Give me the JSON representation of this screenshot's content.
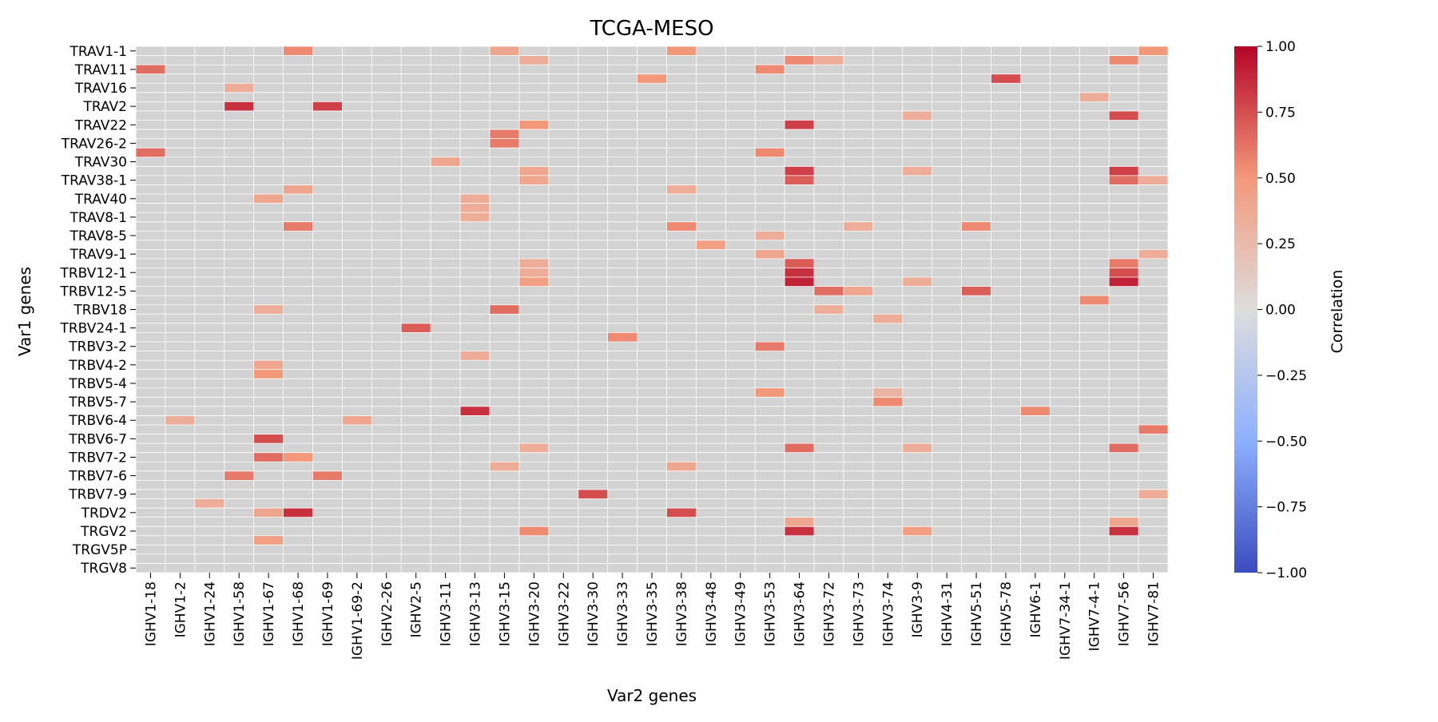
{
  "chart_data": {
    "type": "heatmap",
    "title": "TCGA-MESO",
    "xlabel": "Var2 genes",
    "ylabel": "Var1 genes",
    "colorbar": {
      "label": "Correlation",
      "range": [
        -1.0,
        1.0
      ],
      "ticks": [
        "1.00",
        "0.75",
        "0.50",
        "0.25",
        "0.00",
        "−0.25",
        "−0.50",
        "−0.75",
        "−1.00"
      ],
      "tick_values": [
        1.0,
        0.75,
        0.5,
        0.25,
        0.0,
        -0.25,
        -0.5,
        -0.75,
        -1.0
      ]
    },
    "x_labels": [
      "IGHV1-18",
      "IGHV1-2",
      "IGHV1-24",
      "IGHV1-58",
      "IGHV1-67",
      "IGHV1-68",
      "IGHV1-69",
      "IGHV1-69-2",
      "IGHV2-26",
      "IGHV2-5",
      "IGHV3-11",
      "IGHV3-13",
      "IGHV3-15",
      "IGHV3-20",
      "IGHV3-22",
      "IGHV3-30",
      "IGHV3-33",
      "IGHV3-35",
      "IGHV3-38",
      "IGHV3-48",
      "IGHV3-49",
      "IGHV3-53",
      "IGHV3-64",
      "IGHV3-72",
      "IGHV3-73",
      "IGHV3-74",
      "IGHV3-9",
      "IGHV4-31",
      "IGHV5-51",
      "IGHV5-78",
      "IGHV6-1",
      "IGHV7-34-1",
      "IGHV7-4-1",
      "IGHV7-56",
      "IGHV7-81"
    ],
    "y_tick_labels": [
      "TRAV1-1",
      "TRAV11",
      "TRAV16",
      "TRAV2",
      "TRAV22",
      "TRAV26-2",
      "TRAV30",
      "TRAV38-1",
      "TRAV40",
      "TRAV8-1",
      "TRAV8-5",
      "TRAV9-1",
      "TRBV12-1",
      "TRBV12-5",
      "TRBV18",
      "TRBV24-1",
      "TRBV3-2",
      "TRBV4-2",
      "TRBV5-4",
      "TRBV5-7",
      "TRBV6-4",
      "TRBV6-7",
      "TRBV7-2",
      "TRBV7-6",
      "TRBV7-9",
      "TRDV2",
      "TRGV2",
      "TRGV5P",
      "TRGV8"
    ],
    "n_rows": 57,
    "n_cols": 35,
    "background_value_color": "#d3d3d3",
    "grid": true,
    "cells": [
      [
        0,
        5,
        0.55
      ],
      [
        0,
        12,
        0.4
      ],
      [
        0,
        18,
        0.5
      ],
      [
        0,
        34,
        0.5
      ],
      [
        1,
        13,
        0.35
      ],
      [
        1,
        22,
        0.55
      ],
      [
        1,
        23,
        0.35
      ],
      [
        1,
        33,
        0.55
      ],
      [
        2,
        0,
        0.65
      ],
      [
        2,
        21,
        0.55
      ],
      [
        3,
        17,
        0.5
      ],
      [
        3,
        29,
        0.75
      ],
      [
        4,
        3,
        0.35
      ],
      [
        5,
        32,
        0.35
      ],
      [
        6,
        3,
        0.85
      ],
      [
        6,
        6,
        0.8
      ],
      [
        7,
        26,
        0.35
      ],
      [
        7,
        33,
        0.75
      ],
      [
        8,
        13,
        0.5
      ],
      [
        8,
        22,
        0.8
      ],
      [
        9,
        12,
        0.6
      ],
      [
        10,
        12,
        0.6
      ],
      [
        11,
        0,
        0.65
      ],
      [
        11,
        21,
        0.55
      ],
      [
        12,
        10,
        0.4
      ],
      [
        13,
        13,
        0.4
      ],
      [
        13,
        22,
        0.8
      ],
      [
        13,
        26,
        0.35
      ],
      [
        13,
        33,
        0.8
      ],
      [
        14,
        13,
        0.4
      ],
      [
        14,
        22,
        0.7
      ],
      [
        14,
        33,
        0.65
      ],
      [
        14,
        34,
        0.35
      ],
      [
        15,
        5,
        0.4
      ],
      [
        15,
        18,
        0.35
      ],
      [
        16,
        4,
        0.4
      ],
      [
        16,
        11,
        0.35
      ],
      [
        17,
        11,
        0.35
      ],
      [
        18,
        11,
        0.35
      ],
      [
        19,
        5,
        0.6
      ],
      [
        19,
        18,
        0.55
      ],
      [
        19,
        24,
        0.35
      ],
      [
        19,
        28,
        0.55
      ],
      [
        20,
        21,
        0.35
      ],
      [
        21,
        19,
        0.45
      ],
      [
        22,
        21,
        0.4
      ],
      [
        22,
        34,
        0.35
      ],
      [
        23,
        13,
        0.35
      ],
      [
        23,
        22,
        0.7
      ],
      [
        23,
        33,
        0.6
      ],
      [
        24,
        13,
        0.35
      ],
      [
        24,
        22,
        0.85
      ],
      [
        24,
        33,
        0.75
      ],
      [
        25,
        13,
        0.45
      ],
      [
        25,
        22,
        0.9
      ],
      [
        25,
        26,
        0.35
      ],
      [
        25,
        33,
        0.9
      ],
      [
        26,
        23,
        0.65
      ],
      [
        26,
        24,
        0.4
      ],
      [
        26,
        28,
        0.7
      ],
      [
        27,
        32,
        0.55
      ],
      [
        28,
        4,
        0.35
      ],
      [
        28,
        12,
        0.65
      ],
      [
        28,
        23,
        0.35
      ],
      [
        29,
        25,
        0.35
      ],
      [
        30,
        9,
        0.7
      ],
      [
        31,
        16,
        0.55
      ],
      [
        32,
        21,
        0.6
      ],
      [
        33,
        11,
        0.35
      ],
      [
        34,
        4,
        0.4
      ],
      [
        35,
        4,
        0.5
      ],
      [
        37,
        21,
        0.5
      ],
      [
        37,
        25,
        0.3
      ],
      [
        38,
        25,
        0.55
      ],
      [
        39,
        11,
        0.85
      ],
      [
        39,
        30,
        0.55
      ],
      [
        40,
        1,
        0.35
      ],
      [
        40,
        7,
        0.4
      ],
      [
        41,
        34,
        0.6
      ],
      [
        42,
        4,
        0.75
      ],
      [
        43,
        13,
        0.35
      ],
      [
        43,
        22,
        0.65
      ],
      [
        43,
        26,
        0.35
      ],
      [
        43,
        33,
        0.65
      ],
      [
        44,
        4,
        0.65
      ],
      [
        44,
        5,
        0.5
      ],
      [
        45,
        12,
        0.35
      ],
      [
        45,
        18,
        0.4
      ],
      [
        46,
        3,
        0.6
      ],
      [
        46,
        6,
        0.6
      ],
      [
        48,
        15,
        0.75
      ],
      [
        48,
        34,
        0.35
      ],
      [
        49,
        2,
        0.35
      ],
      [
        50,
        4,
        0.4
      ],
      [
        50,
        5,
        0.85
      ],
      [
        50,
        18,
        0.75
      ],
      [
        51,
        22,
        0.4
      ],
      [
        51,
        33,
        0.4
      ],
      [
        52,
        13,
        0.55
      ],
      [
        52,
        22,
        0.85
      ],
      [
        52,
        26,
        0.45
      ],
      [
        52,
        33,
        0.85
      ],
      [
        53,
        4,
        0.45
      ]
    ]
  }
}
